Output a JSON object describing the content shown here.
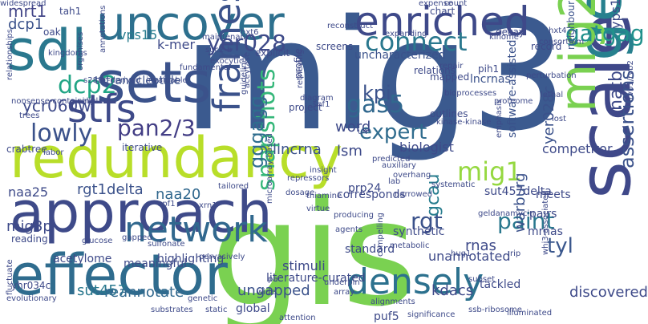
{
  "words": [
    {
      "text": "mig3",
      "color": "#3b5a8f",
      "weight": 1.0
    },
    {
      "text": "gis",
      "color": "#7ad151",
      "weight": 0.95
    },
    {
      "text": "approach",
      "color": "#3e4a89",
      "weight": 0.6
    },
    {
      "text": "effector",
      "color": "#2f6c8e",
      "weight": 0.6
    },
    {
      "text": "redundancy",
      "color": "#b8de29",
      "weight": 0.62
    },
    {
      "text": "scale",
      "color": "#3f4889",
      "weight": 0.55
    },
    {
      "text": "sets",
      "color": "#3b528b",
      "weight": 0.55
    },
    {
      "text": "uncover",
      "color": "#2d708e",
      "weight": 0.55
    },
    {
      "text": "sdl",
      "color": "#2a788e",
      "weight": 0.58
    },
    {
      "text": "enriched",
      "color": "#3e4989",
      "weight": 0.45
    },
    {
      "text": "genomic",
      "color": "#27808e",
      "weight": 0.52
    },
    {
      "text": "mig2",
      "color": "#7ad151",
      "weight": 0.48
    },
    {
      "text": "network",
      "color": "#31688e",
      "weight": 0.4
    },
    {
      "text": "densely",
      "color": "#2c718e",
      "weight": 0.4
    },
    {
      "text": "frames",
      "color": "#3b528b",
      "weight": 0.38
    },
    {
      "text": "connect",
      "color": "#2a788e",
      "weight": 0.32
    },
    {
      "text": "stfs",
      "color": "#3e4a89",
      "weight": 0.36
    },
    {
      "text": "mig1",
      "color": "#95d840",
      "weight": 0.3
    },
    {
      "text": "snapshots",
      "color": "#35b779",
      "weight": 0.28
    },
    {
      "text": "lowly",
      "color": "#3b528b",
      "weight": 0.28
    },
    {
      "text": "dcp2",
      "color": "#21a585",
      "weight": 0.26
    },
    {
      "text": "gas5",
      "color": "#31688e",
      "weight": 0.26
    },
    {
      "text": "gggagg",
      "color": "#2e6d8e",
      "weight": 0.25
    },
    {
      "text": "gatgag",
      "color": "#21918c",
      "weight": 0.24
    },
    {
      "text": "yer028",
      "color": "#3e4a89",
      "weight": 0.24
    },
    {
      "text": "pan2/3",
      "color": "#433e85",
      "weight": 0.24
    },
    {
      "text": "paint",
      "color": "#2a788e",
      "weight": 0.24
    },
    {
      "text": "rgt",
      "color": "#3b528b",
      "weight": 0.24
    },
    {
      "text": "assertions",
      "color": "#3b528b",
      "weight": 0.24
    },
    {
      "text": "expert",
      "color": "#2f6c8e",
      "weight": 0.22
    },
    {
      "text": "tyl",
      "color": "#39568c",
      "weight": 0.24
    },
    {
      "text": "kpi",
      "color": "#3b528b",
      "weight": 0.23
    },
    {
      "text": "natb",
      "color": "#3e4a89",
      "weight": 0.22
    },
    {
      "text": "gcau",
      "color": "#287d8e",
      "weight": 0.22
    },
    {
      "text": "mrt1",
      "color": "#414487",
      "weight": 0.2
    },
    {
      "text": "dcp1",
      "color": "#3b528b",
      "weight": 0.17
    },
    {
      "text": "ycr060w",
      "color": "#3e4a89",
      "weight": 0.18
    },
    {
      "text": "vps15",
      "color": "#287d8e",
      "weight": 0.17
    },
    {
      "text": "lincrna",
      "color": "#3b528b",
      "weight": 0.17
    },
    {
      "text": "word",
      "color": "#3e4a89",
      "weight": 0.17
    },
    {
      "text": "lsm",
      "color": "#3e4a89",
      "weight": 0.17
    },
    {
      "text": "k-mer",
      "color": "#3e4a89",
      "weight": 0.15
    },
    {
      "text": "rgt1delta",
      "color": "#3b528b",
      "weight": 0.16
    },
    {
      "text": "naa20",
      "color": "#31688e",
      "weight": 0.16
    },
    {
      "text": "naa25",
      "color": "#3e4a89",
      "weight": 0.14
    },
    {
      "text": "mig3p",
      "color": "#3e4a89",
      "weight": 0.14
    },
    {
      "text": "sut457",
      "color": "#2a788e",
      "weight": 0.14
    },
    {
      "text": "reannotate",
      "color": "#31688e",
      "weight": 0.14
    },
    {
      "text": "ungapped",
      "color": "#3b528b",
      "weight": 0.14
    },
    {
      "text": "kdacs",
      "color": "#3e4a89",
      "weight": 0.14
    },
    {
      "text": "discovered",
      "color": "#3e4a89",
      "weight": 0.14
    },
    {
      "text": "warburg",
      "color": "#3b528b",
      "weight": 0.14
    },
    {
      "text": "competitor",
      "color": "#3e4a89",
      "weight": 0.13
    },
    {
      "text": "biologist",
      "color": "#3e4a89",
      "weight": 0.12
    },
    {
      "text": "mrnas",
      "color": "#3e4a89",
      "weight": 0.11
    },
    {
      "text": "rnas",
      "color": "#3e4a89",
      "weight": 0.12
    },
    {
      "text": "unannotated",
      "color": "#3e4a89",
      "weight": 0.12
    },
    {
      "text": "stimuli",
      "color": "#3e4a89",
      "weight": 0.12
    },
    {
      "text": "highlighting",
      "color": "#3e4a89",
      "weight": 0.12
    },
    {
      "text": "meaningful",
      "color": "#3e4a89",
      "weight": 0.12
    },
    {
      "text": "acetylome",
      "color": "#3e4a89",
      "weight": 0.12
    },
    {
      "text": "yer028c",
      "color": "#3b528b",
      "weight": 0.12
    },
    {
      "text": "yps163",
      "color": "#3e4a89",
      "weight": 0.12
    },
    {
      "text": "lncrnas",
      "color": "#3b528b",
      "weight": 0.11
    },
    {
      "text": "neighbouring",
      "color": "#3b528b",
      "weight": 0.1
    },
    {
      "text": "tetranucleotide",
      "color": "#3b528b",
      "weight": 0.1
    },
    {
      "text": "software-assisted",
      "color": "#3b528b",
      "weight": 0.1
    },
    {
      "text": "uncharacterized",
      "color": "#3b528b",
      "weight": 0.1
    },
    {
      "text": "crabtree",
      "color": "#3e4a89",
      "weight": 0.09
    },
    {
      "text": "iterative",
      "color": "#3e4a89",
      "weight": 0.09
    },
    {
      "text": "prp24",
      "color": "#3e4a89",
      "weight": 0.09
    },
    {
      "text": "sut457delta",
      "color": "#3e4a89",
      "weight": 0.09
    },
    {
      "text": "pairs",
      "color": "#3e4a89",
      "weight": 0.09
    },
    {
      "text": "meets",
      "color": "#3e4a89",
      "weight": 0.09
    },
    {
      "text": "corresponds",
      "color": "#3e4a89",
      "weight": 0.09
    },
    {
      "text": "synthetic",
      "color": "#3e4a89",
      "weight": 0.09
    },
    {
      "text": "standard",
      "color": "#3e4a89",
      "weight": 0.09
    },
    {
      "text": "global",
      "color": "#3e4a89",
      "weight": 0.09
    },
    {
      "text": "tackled",
      "color": "#3e4a89",
      "weight": 0.09
    },
    {
      "text": "puf5",
      "color": "#3e4a89",
      "weight": 0.09
    },
    {
      "text": "reading",
      "color": "#3e4a89",
      "weight": 0.08
    },
    {
      "text": "yhr034c",
      "color": "#3e4a89",
      "weight": 0.08
    },
    {
      "text": "gatgag",
      "color": "#21918c",
      "weight": 0.0
    },
    {
      "text": "project",
      "color": "#3e4a89",
      "weight": 0.08
    },
    {
      "text": "profile",
      "color": "#3e4a89",
      "weight": 0.08
    },
    {
      "text": "outlines",
      "color": "#3e4a89",
      "weight": 0.08
    },
    {
      "text": "decay",
      "color": "#3e4a89",
      "weight": 0.08
    },
    {
      "text": "chart",
      "color": "#3e4a89",
      "weight": 0.08
    },
    {
      "text": "screens",
      "color": "#3e4a89",
      "weight": 0.08
    },
    {
      "text": "relations",
      "color": "#3e4a89",
      "weight": 0.08
    },
    {
      "text": "mapped",
      "color": "#3e4a89",
      "weight": 0.08
    },
    {
      "text": "record",
      "color": "#3e4a89",
      "weight": 0.08
    },
    {
      "text": "pih1",
      "color": "#3e4a89",
      "weight": 0.08
    },
    {
      "text": "explicit",
      "color": "#3e4a89",
      "weight": 0.08
    },
    {
      "text": "suc2-b",
      "color": "#3e4a89",
      "weight": 0.08
    },
    {
      "text": "oak",
      "color": "#3e4a89",
      "weight": 0.08
    },
    {
      "text": "tah1",
      "color": "#3e4a89",
      "weight": 0.08
    },
    {
      "text": "hxt6",
      "color": "#3e4a89",
      "weight": 0.06
    },
    {
      "text": "s288c-derived",
      "color": "#3e4a89",
      "weight": 0.06
    },
    {
      "text": "guidelines",
      "color": "#3e4a89",
      "weight": 0.07
    },
    {
      "text": "aceytase",
      "color": "#3e4a89",
      "weight": 0.07
    },
    {
      "text": "retrieving",
      "color": "#3e4a89",
      "weight": 0.07
    },
    {
      "text": "trees",
      "color": "#3e4a89",
      "weight": 0.06
    },
    {
      "text": "u4",
      "color": "#3e4a89",
      "weight": 0.08
    },
    {
      "text": "lab",
      "color": "#3e4a89",
      "weight": 0.05
    },
    {
      "text": "tailored",
      "color": "#3e4a89",
      "weight": 0.05
    },
    {
      "text": "naa25",
      "color": "#3e4a89",
      "weight": 0.0
    },
    {
      "text": "upf1",
      "color": "#3e4a89",
      "weight": 0.05
    },
    {
      "text": "xrn1",
      "color": "#3e4a89",
      "weight": 0.05
    },
    {
      "text": "thiamine",
      "color": "#3e4a89",
      "weight": 0.05
    },
    {
      "text": "virtue",
      "color": "#3e4a89",
      "weight": 0.05
    },
    {
      "text": "producing",
      "color": "#3e4a89",
      "weight": 0.05
    },
    {
      "text": "agents",
      "color": "#3e4a89",
      "weight": 0.05
    },
    {
      "text": "underpin",
      "color": "#3e4a89",
      "weight": 0.05
    },
    {
      "text": "pac",
      "color": "#3e4a89",
      "weight": 0.05
    },
    {
      "text": "wide",
      "color": "#3e4a89",
      "weight": 0.05
    },
    {
      "text": "array",
      "color": "#3e4a89",
      "weight": 0.05
    },
    {
      "text": "static",
      "color": "#3e4a89",
      "weight": 0.05
    },
    {
      "text": "substrates",
      "color": "#3e4a89",
      "weight": 0.05
    },
    {
      "text": "genetic",
      "color": "#3e4a89",
      "weight": 0.05
    },
    {
      "text": "sulfonate",
      "color": "#3e4a89",
      "weight": 0.05
    },
    {
      "text": "glucose",
      "color": "#3e4a89",
      "weight": 0.05
    },
    {
      "text": "gapped",
      "color": "#3e4a89",
      "weight": 0.05
    },
    {
      "text": "fluctuate",
      "color": "#3e4a89",
      "weight": 0.05
    },
    {
      "text": "evolutionary",
      "color": "#3e4a89",
      "weight": 0.05
    },
    {
      "text": "attention",
      "color": "#3e4a89",
      "weight": 0.05
    },
    {
      "text": "alignments",
      "color": "#3e4a89",
      "weight": 0.05
    },
    {
      "text": "significance",
      "color": "#3e4a89",
      "weight": 0.05
    },
    {
      "text": "illuminated",
      "color": "#3e4a89",
      "weight": 0.05
    },
    {
      "text": "ssb-ribosome",
      "color": "#3e4a89",
      "weight": 0.05
    },
    {
      "text": "subset",
      "color": "#3e4a89",
      "weight": 0.05
    },
    {
      "text": "hug1",
      "color": "#3e4a89",
      "weight": 0.05
    },
    {
      "text": "geldanamycin",
      "color": "#3e4a89",
      "weight": 0.05
    },
    {
      "text": "rip",
      "color": "#3e4a89",
      "weight": 0.05
    },
    {
      "text": "systematic",
      "color": "#3e4a89",
      "weight": 0.05
    },
    {
      "text": "narrowed",
      "color": "#3e4a89",
      "weight": 0.05
    },
    {
      "text": "overhang",
      "color": "#3e4a89",
      "weight": 0.05
    },
    {
      "text": "auxiliary",
      "color": "#3e4a89",
      "weight": 0.05
    },
    {
      "text": "predicted",
      "color": "#3e4a89",
      "weight": 0.05
    },
    {
      "text": "dosage",
      "color": "#3e4a89",
      "weight": 0.05
    },
    {
      "text": "repressors",
      "color": "#3e4a89",
      "weight": 0.05
    },
    {
      "text": "insight",
      "color": "#3e4a89",
      "weight": 0.05
    },
    {
      "text": "diagram",
      "color": "#3e4a89",
      "weight": 0.05
    },
    {
      "text": "snf1",
      "color": "#3e4a89",
      "weight": 0.05
    },
    {
      "text": "kinase-kinase",
      "color": "#3e4a89",
      "weight": 0.05
    },
    {
      "text": "emphasis",
      "color": "#3e4a89",
      "weight": 0.05
    },
    {
      "text": "perturbation",
      "color": "#3e4a89",
      "weight": 0.05
    },
    {
      "text": "proteome",
      "color": "#3e4a89",
      "weight": 0.05
    },
    {
      "text": "lethal",
      "color": "#3e4a89",
      "weight": 0.05
    },
    {
      "text": "kinome",
      "color": "#3e4a89",
      "weight": 0.05
    },
    {
      "text": "repair",
      "color": "#3e4a89",
      "weight": 0.05
    },
    {
      "text": "bioprocesses",
      "color": "#3e4a89",
      "weight": 0.05
    },
    {
      "text": "expanding",
      "color": "#3e4a89",
      "weight": 0.05
    },
    {
      "text": "reconstruct",
      "color": "#3e4a89",
      "weight": 0.05
    },
    {
      "text": "expense",
      "color": "#3e4a89",
      "weight": 0.05
    },
    {
      "text": "consortium",
      "color": "#3e4a89",
      "weight": 0.05
    },
    {
      "text": "hxt4",
      "color": "#3e4a89",
      "weight": 0.05
    },
    {
      "text": "maintenance",
      "color": "#3e4a89",
      "weight": 0.05
    },
    {
      "text": "exocytic",
      "color": "#3e4a89",
      "weight": 0.05
    },
    {
      "text": "fundamental",
      "color": "#3e4a89",
      "weight": 0.05
    },
    {
      "text": "invaluable",
      "color": "#3e4a89",
      "weight": 0.05
    },
    {
      "text": "annotations",
      "color": "#3e4a89",
      "weight": 0.05
    },
    {
      "text": "kingdoms",
      "color": "#3e4a89",
      "weight": 0.05
    },
    {
      "text": "count",
      "color": "#3e4a89",
      "weight": 0.05
    },
    {
      "text": "organises",
      "color": "#3e4a89",
      "weight": 0.05
    },
    {
      "text": "relationships",
      "color": "#3e4a89",
      "weight": 0.05
    },
    {
      "text": "nonsense-containing",
      "color": "#3e4a89",
      "weight": 0.05
    },
    {
      "text": "cellular",
      "color": "#3e4a89",
      "weight": 0.05
    },
    {
      "text": "labor",
      "color": "#3e4a89",
      "weight": 0.05
    },
    {
      "text": "lost",
      "color": "#3e4a89",
      "weight": 0.05
    },
    {
      "text": "rvb1/rvb2",
      "color": "#3e4a89",
      "weight": 0.05
    },
    {
      "text": "compelling",
      "color": "#3e4a89",
      "weight": 0.05
    },
    {
      "text": "metabolic",
      "color": "#3e4a89",
      "weight": 0.05
    },
    {
      "text": "pervasively",
      "color": "#3e4a89",
      "weight": 0.05
    },
    {
      "text": "whi3-associated",
      "color": "#3e4a89",
      "weight": 0.05
    },
    {
      "text": "microarray-based",
      "color": "#3e4a89",
      "weight": 0.05
    },
    {
      "text": "literature-curated",
      "color": "#3e4a89",
      "weight": 0.05
    },
    {
      "text": "widespread",
      "color": "#3e4a89",
      "weight": 0.08
    }
  ]
}
